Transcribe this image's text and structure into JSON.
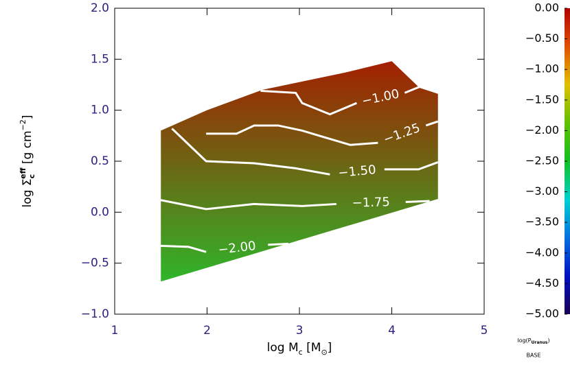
{
  "chart_data": {
    "type": "contour",
    "xlabel": [
      "log M",
      "c",
      " [M",
      "⊙",
      "]"
    ],
    "ylabel": [
      "log Σ",
      "c",
      "eff",
      " [g cm",
      "−2",
      "]"
    ],
    "xlim": [
      1,
      5
    ],
    "xticks": [
      1,
      2,
      3,
      4,
      5
    ],
    "ylim": [
      -1.0,
      2.0
    ],
    "yticks": [
      {
        "value": 2.0,
        "label": "2.0"
      },
      {
        "value": 1.5,
        "label": "1.5"
      },
      {
        "value": 1.0,
        "label": "1.0"
      },
      {
        "value": 0.5,
        "label": "0.5"
      },
      {
        "value": 0.0,
        "label": "0.0"
      },
      {
        "value": -0.5,
        "label": "−0.5"
      },
      {
        "value": -1.0,
        "label": "−1.0"
      }
    ],
    "region": {
      "x": [
        1.5,
        2.0,
        2.6,
        3.5,
        4.0,
        4.3,
        4.5,
        4.5,
        1.5
      ],
      "y": [
        0.8,
        1.0,
        1.2,
        1.37,
        1.48,
        1.22,
        1.16,
        0.13,
        -0.68
      ]
    },
    "region_colors": [
      "#a32000",
      "#2fb52a"
    ],
    "contour_color": "#ffffff",
    "contours": [
      {
        "level": -1.0,
        "label": "−1.00",
        "x": [
          2.58,
          2.96,
          3.03,
          3.33,
          3.62,
          null,
          4.14,
          4.33
        ],
        "y": [
          1.19,
          1.17,
          1.07,
          0.96,
          1.07,
          null,
          1.17,
          1.24
        ]
      },
      {
        "level": -1.25,
        "label": "−1.25",
        "x": [
          1.99,
          2.32,
          2.51,
          2.77,
          3.03,
          3.25,
          3.55,
          3.85,
          null,
          4.37,
          4.5
        ],
        "y": [
          0.77,
          0.77,
          0.85,
          0.85,
          0.8,
          0.74,
          0.66,
          0.68,
          null,
          0.85,
          0.89
        ]
      },
      {
        "level": -1.5,
        "label": "−1.50",
        "x": [
          1.62,
          1.99,
          2.51,
          2.96,
          3.33,
          null,
          3.92,
          4.29,
          4.5
        ],
        "y": [
          0.82,
          0.5,
          0.48,
          0.43,
          0.37,
          null,
          0.42,
          0.42,
          0.49
        ]
      },
      {
        "level": -1.75,
        "label": "−1.75",
        "x": [
          1.49,
          1.99,
          2.51,
          3.03,
          3.4,
          null,
          4.15,
          4.41
        ],
        "y": [
          0.12,
          0.03,
          0.08,
          0.06,
          0.08,
          null,
          0.1,
          0.11
        ]
      },
      {
        "level": -2.0,
        "label": "−2.00",
        "x": [
          1.49,
          1.8,
          1.99,
          null,
          2.66,
          2.88
        ],
        "y": [
          -0.33,
          -0.34,
          -0.39,
          null,
          -0.32,
          -0.31
        ]
      }
    ],
    "colorbar_lim": [
      -5.0,
      0.0
    ],
    "colorbar_ticks": [
      {
        "value": 0.0,
        "label": "0.00"
      },
      {
        "value": -0.5,
        "label": "−0.50"
      },
      {
        "value": -1.0,
        "label": "−1.00"
      },
      {
        "value": -1.5,
        "label": "−1.50"
      },
      {
        "value": -2.0,
        "label": "−2.00"
      },
      {
        "value": -2.5,
        "label": "−2.50"
      },
      {
        "value": -3.0,
        "label": "−3.00"
      },
      {
        "value": -3.5,
        "label": "−3.50"
      },
      {
        "value": -4.0,
        "label": "−4.00"
      },
      {
        "value": -4.5,
        "label": "−4.50"
      },
      {
        "value": -5.0,
        "label": "−5.00"
      }
    ],
    "colormap": [
      "#1a0055",
      "#0010c0",
      "#0070e0",
      "#00d0d0",
      "#10c020",
      "#60c000",
      "#e0c000",
      "#e05000",
      "#b00000"
    ],
    "colorbar_label": [
      "log(P",
      "Uranus",
      ")"
    ],
    "colorbar_note": "BASE"
  }
}
